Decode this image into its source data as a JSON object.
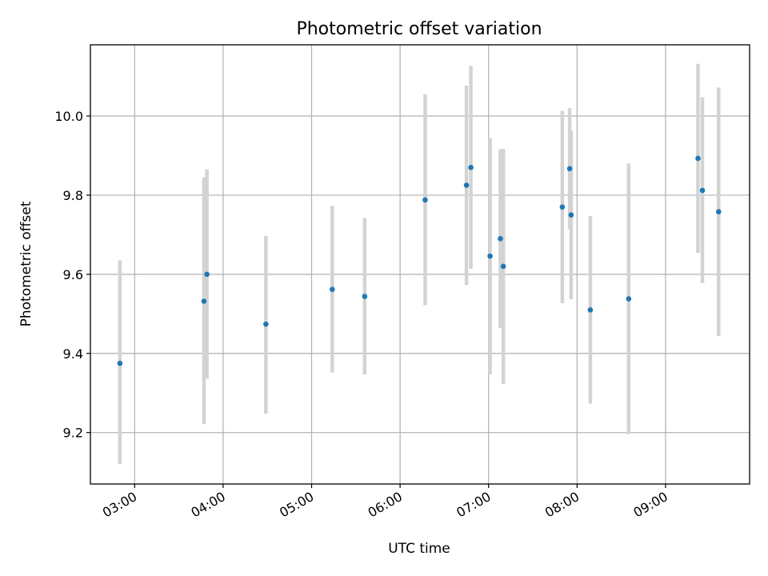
{
  "chart_data": {
    "type": "scatter",
    "title": "Photometric offset variation",
    "xlabel": "UTC time",
    "ylabel": "Photometric offset",
    "xlim": [
      "02:30",
      "09:57"
    ],
    "ylim": [
      9.07,
      10.18
    ],
    "x_ticks": [
      "03:00",
      "04:00",
      "05:00",
      "06:00",
      "07:00",
      "08:00",
      "09:00"
    ],
    "y_ticks": [
      "9.2",
      "9.4",
      "9.6",
      "9.8",
      "10.0"
    ],
    "grid": true,
    "colors": {
      "point": "#1f77b4",
      "errorbar": "#d3d3d3",
      "grid": "#b0b0b0"
    },
    "points": [
      {
        "x": "02:50",
        "y": 9.375,
        "ylow": 9.12,
        "yhigh": 9.635
      },
      {
        "x": "03:47",
        "y": 9.532,
        "ylow": 9.222,
        "yhigh": 9.845
      },
      {
        "x": "03:49",
        "y": 9.6,
        "ylow": 9.336,
        "yhigh": 9.865
      },
      {
        "x": "04:29",
        "y": 9.474,
        "ylow": 9.248,
        "yhigh": 9.697
      },
      {
        "x": "05:14",
        "y": 9.562,
        "ylow": 9.352,
        "yhigh": 9.773
      },
      {
        "x": "05:36",
        "y": 9.544,
        "ylow": 9.347,
        "yhigh": 9.742
      },
      {
        "x": "06:17",
        "y": 9.788,
        "ylow": 9.522,
        "yhigh": 10.055
      },
      {
        "x": "06:45",
        "y": 9.825,
        "ylow": 9.573,
        "yhigh": 10.077
      },
      {
        "x": "06:48",
        "y": 9.87,
        "ylow": 9.614,
        "yhigh": 10.127
      },
      {
        "x": "07:01",
        "y": 9.646,
        "ylow": 9.347,
        "yhigh": 9.945
      },
      {
        "x": "07:08",
        "y": 9.69,
        "ylow": 9.464,
        "yhigh": 9.916
      },
      {
        "x": "07:10",
        "y": 9.62,
        "ylow": 9.323,
        "yhigh": 9.917
      },
      {
        "x": "07:50",
        "y": 9.77,
        "ylow": 9.527,
        "yhigh": 10.013
      },
      {
        "x": "07:55",
        "y": 9.867,
        "ylow": 9.714,
        "yhigh": 10.02
      },
      {
        "x": "07:56",
        "y": 9.75,
        "ylow": 9.537,
        "yhigh": 9.963
      },
      {
        "x": "08:09",
        "y": 9.51,
        "ylow": 9.273,
        "yhigh": 9.747
      },
      {
        "x": "08:35",
        "y": 9.538,
        "ylow": 9.196,
        "yhigh": 9.88
      },
      {
        "x": "09:22",
        "y": 9.893,
        "ylow": 9.654,
        "yhigh": 10.132
      },
      {
        "x": "09:25",
        "y": 9.812,
        "ylow": 9.578,
        "yhigh": 10.047
      },
      {
        "x": "09:36",
        "y": 9.758,
        "ylow": 9.444,
        "yhigh": 10.072
      }
    ]
  }
}
